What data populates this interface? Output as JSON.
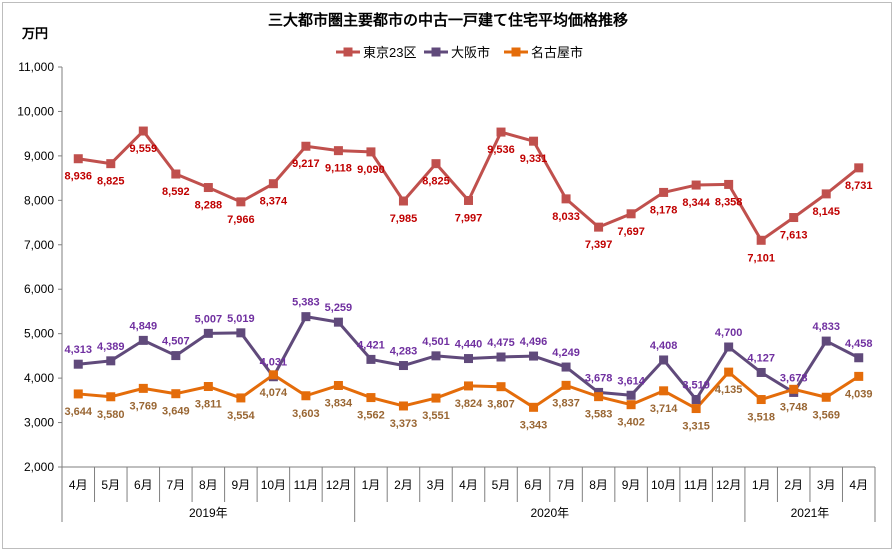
{
  "chart_data": {
    "type": "line",
    "title": "三大都市圏主要都市の中古一戸建て住宅平均価格推移",
    "ylabel": "万円",
    "ylim": [
      2000,
      11000
    ],
    "yticks": [
      "2,000",
      "3,000",
      "4,000",
      "5,000",
      "6,000",
      "7,000",
      "8,000",
      "9,000",
      "10,000",
      "11,000"
    ],
    "yticks_values": [
      2000,
      3000,
      4000,
      5000,
      6000,
      7000,
      8000,
      9000,
      10000,
      11000
    ],
    "categories": [
      "4月",
      "5月",
      "6月",
      "7月",
      "8月",
      "9月",
      "10月",
      "11月",
      "12月",
      "1月",
      "2月",
      "3月",
      "4月",
      "5月",
      "6月",
      "7月",
      "8月",
      "9月",
      "10月",
      "11月",
      "12月",
      "1月",
      "2月",
      "3月",
      "4月"
    ],
    "years": [
      {
        "label": "2019年",
        "start": 0,
        "end": 8
      },
      {
        "label": "2020年",
        "start": 9,
        "end": 20
      },
      {
        "label": "2021年",
        "start": 21,
        "end": 24
      }
    ],
    "series": [
      {
        "name": "東京23区",
        "color": "#c0504d",
        "labelColor": "#c00000",
        "marker": "square",
        "values": [
          8936,
          8825,
          9559,
          8592,
          8288,
          7966,
          8374,
          9217,
          9118,
          9090,
          7985,
          8825,
          7997,
          9536,
          9331,
          8033,
          7397,
          7697,
          8178,
          8344,
          8358,
          7101,
          7613,
          8145,
          8731
        ],
        "labels": [
          "8,936",
          "8,825",
          "9,559",
          "8,592",
          "8,288",
          "7,966",
          "8,374",
          "9,217",
          "9,118",
          "9,090",
          "7,985",
          "8,825",
          "7,997",
          "9,536",
          "9,331",
          "8,033",
          "7,397",
          "7,697",
          "8,178",
          "8,344",
          "8,358",
          "7,101",
          "7,613",
          "8,145",
          "8,731"
        ],
        "labelPos": [
          "b",
          "b",
          "b",
          "b",
          "b",
          "b",
          "b",
          "b",
          "b",
          "b",
          "b",
          "b",
          "b",
          "b",
          "b",
          "b",
          "b",
          "b",
          "b",
          "b",
          "b",
          "b",
          "b",
          "b",
          "b"
        ]
      },
      {
        "name": "大阪市",
        "color": "#604a7b",
        "labelColor": "#7030a0",
        "marker": "square",
        "values": [
          4313,
          4389,
          4849,
          4507,
          5007,
          5019,
          4031,
          5383,
          5259,
          4421,
          4283,
          4501,
          4440,
          4475,
          4496,
          4249,
          3678,
          3614,
          4408,
          3519,
          4700,
          4127,
          3678,
          4833,
          4458
        ],
        "labels": [
          "4,313",
          "4,389",
          "4,849",
          "4,507",
          "5,007",
          "5,019",
          "4,031",
          "5,383",
          "5,259",
          "4,421",
          "4,283",
          "4,501",
          "4,440",
          "4,475",
          "4,496",
          "4,249",
          "3,678",
          "3,614",
          "4,408",
          "3,519",
          "4,700",
          "4,127",
          "3,678",
          "4,833",
          "4,458"
        ],
        "labelPos": [
          "t",
          "t",
          "t",
          "t",
          "t",
          "t",
          "t",
          "t",
          "t",
          "t",
          "t",
          "t",
          "t",
          "t",
          "t",
          "t",
          "t",
          "t",
          "t",
          "t",
          "t",
          "t",
          "t",
          "t",
          "t"
        ]
      },
      {
        "name": "名古屋市",
        "color": "#e46c0a",
        "labelColor": "#996633",
        "marker": "square",
        "values": [
          3644,
          3580,
          3769,
          3649,
          3811,
          3554,
          4074,
          3603,
          3834,
          3562,
          3373,
          3551,
          3824,
          3807,
          3343,
          3837,
          3583,
          3402,
          3714,
          3315,
          4135,
          3518,
          3748,
          3569,
          4039
        ],
        "labels": [
          "3,644",
          "3,580",
          "3,769",
          "3,649",
          "3,811",
          "3,554",
          "4,074",
          "3,603",
          "3,834",
          "3,562",
          "3,373",
          "3,551",
          "3,824",
          "3,807",
          "3,343",
          "3,837",
          "3,583",
          "3,402",
          "3,714",
          "3,315",
          "4,135",
          "3,518",
          "3,748",
          "3,569",
          "4,039"
        ],
        "labelPos": [
          "b",
          "b",
          "b",
          "b",
          "b",
          "b",
          "b",
          "b",
          "b",
          "b",
          "b",
          "b",
          "b",
          "b",
          "b",
          "b",
          "b",
          "b",
          "b",
          "b",
          "b",
          "b",
          "b",
          "b",
          "b"
        ]
      }
    ],
    "legend": "top-center",
    "grid": false
  }
}
